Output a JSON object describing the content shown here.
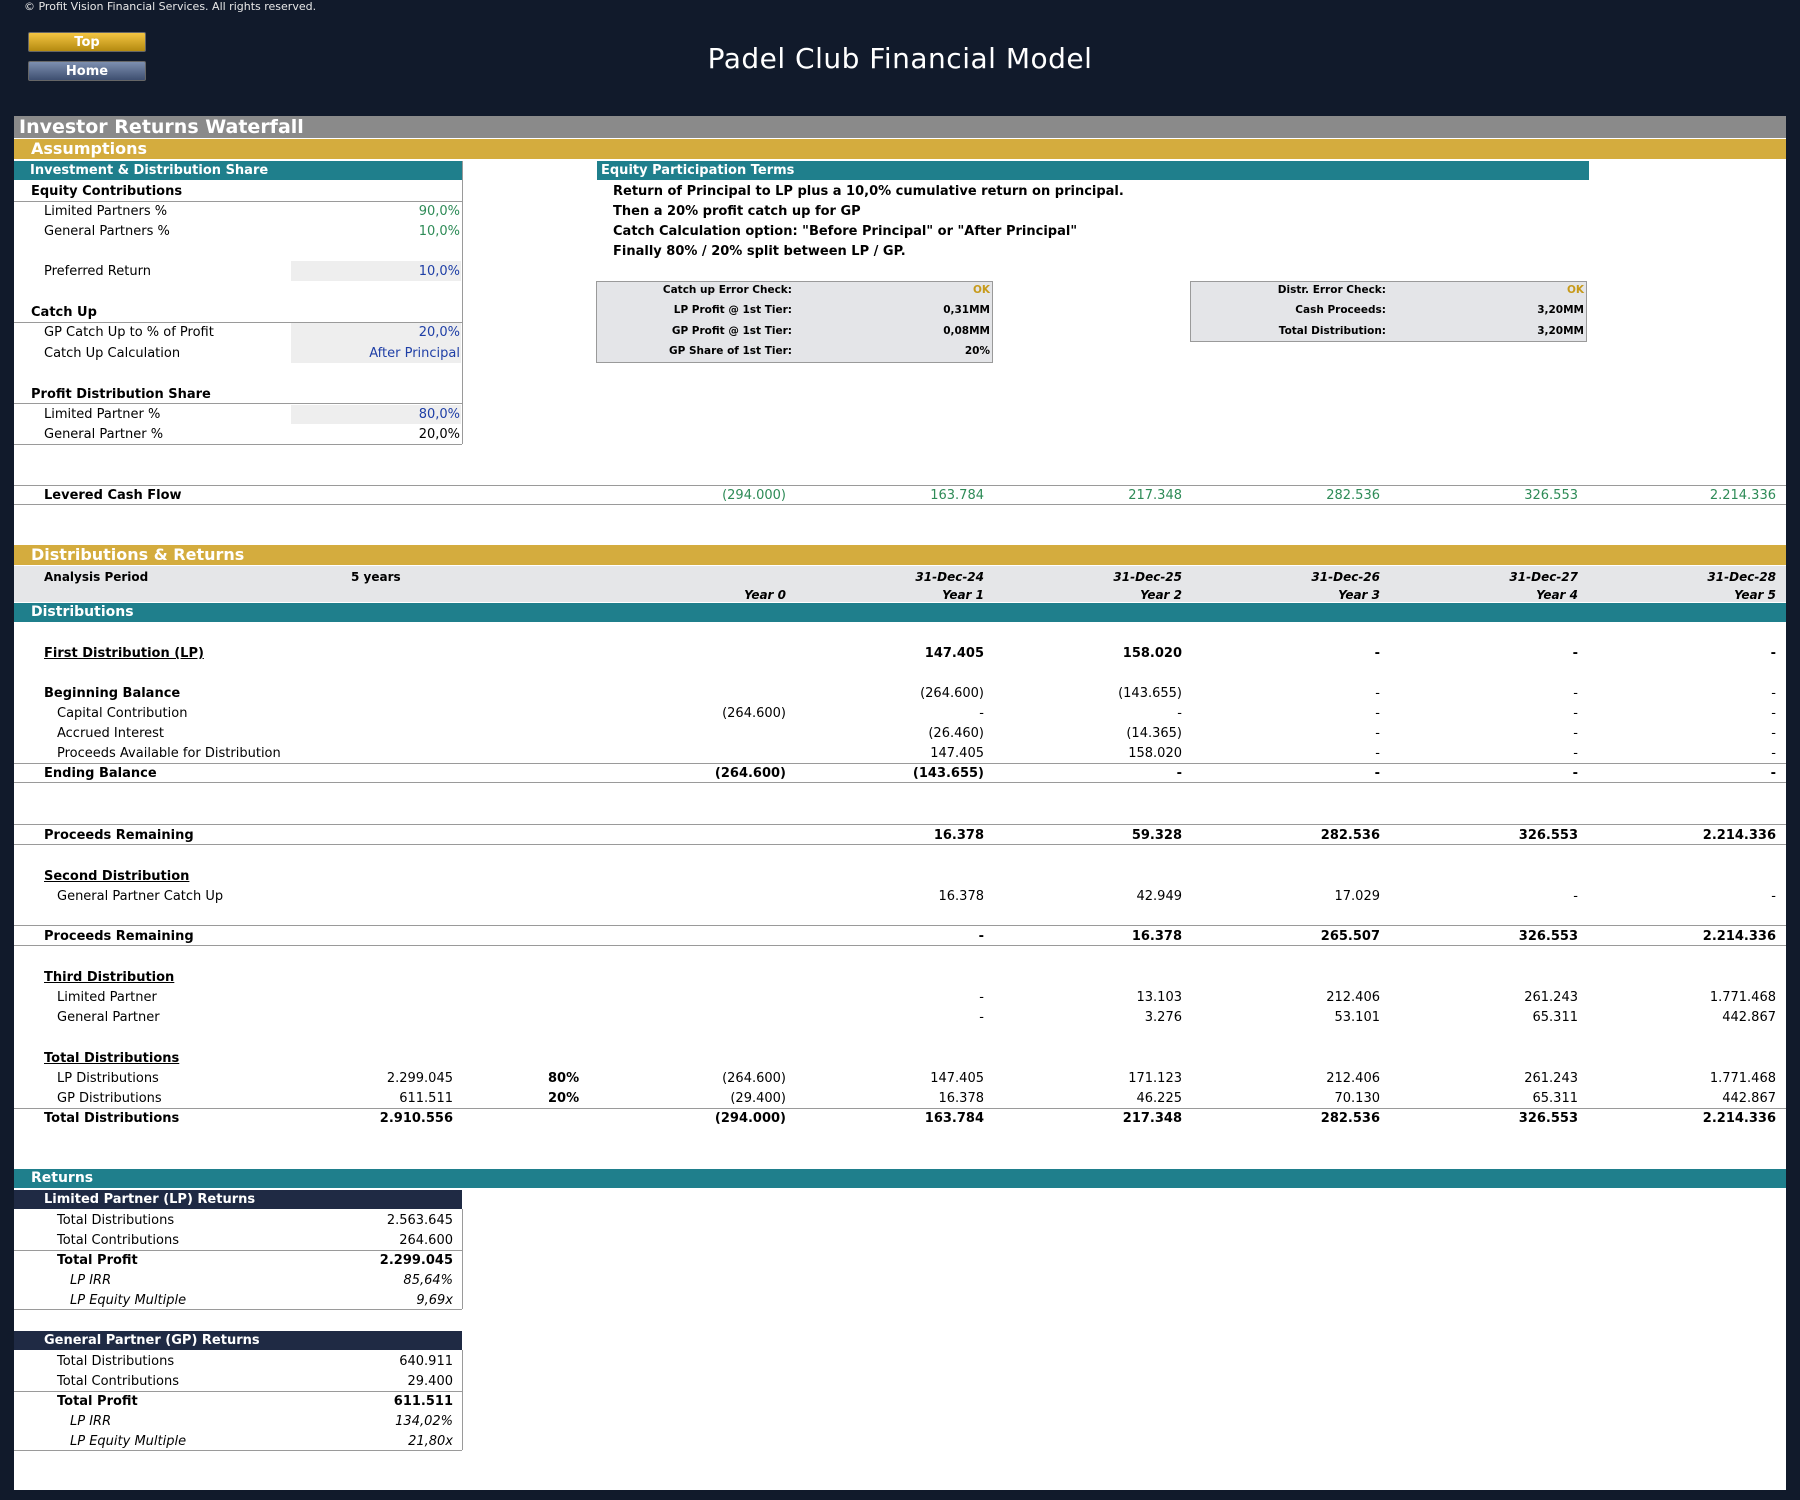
{
  "header": {
    "copyright": "© Profit Vision Financial Services. All rights reserved.",
    "title": "Padel Club Financial Model",
    "top_button": "Top",
    "home_button": "Home"
  },
  "sections": {
    "main": "Investor Returns Waterfall",
    "assumptions": "Assumptions",
    "dist_returns": "Distributions & Returns",
    "distributions": "Distributions",
    "returns": "Returns"
  },
  "assumptions": {
    "panel_title": "Investment & Distribution Share",
    "equity_contributions": "Equity Contributions",
    "lp_pct_label": "Limited Partners %",
    "lp_pct": "90,0%",
    "gp_pct_label": "General Partners %",
    "gp_pct": "10,0%",
    "pref_label": "Preferred Return",
    "pref": "10,0%",
    "catch_up": "Catch Up",
    "gp_catch_label": "GP Catch Up to % of Profit",
    "gp_catch": "20,0%",
    "catch_calc_label": "Catch Up Calculation",
    "catch_calc": "After Principal",
    "profit_share": "Profit Distribution Share",
    "lp_share_label": "Limited Partner %",
    "lp_share": "80,0%",
    "gp_share_label": "General Partner %",
    "gp_share": "20,0%"
  },
  "terms": {
    "title": "Equity Participation Terms",
    "lines": [
      "Return of Principal to LP plus a 10,0% cumulative return on principal.",
      "Then a 20% profit catch up for GP",
      "Catch Calculation option: \"Before Principal\" or \"After Principal\"",
      "Finally 80% / 20% split between LP / GP."
    ]
  },
  "checks1": [
    {
      "label": "Catch up Error Check:",
      "value": "OK"
    },
    {
      "label": "LP Profit @ 1st Tier:",
      "value": "0,31MM"
    },
    {
      "label": "GP Profit @ 1st Tier:",
      "value": "0,08MM"
    },
    {
      "label": "GP Share of 1st Tier:",
      "value": "20%"
    }
  ],
  "checks2": [
    {
      "label": "Distr. Error Check:",
      "value": "OK"
    },
    {
      "label": "Cash Proceeds:",
      "value": "3,20MM"
    },
    {
      "label": "Total Distribution:",
      "value": "3,20MM"
    }
  ],
  "levered": {
    "label": "Levered Cash Flow",
    "values": [
      "(294.000)",
      "163.784",
      "217.348",
      "282.536",
      "326.553",
      "2.214.336"
    ]
  },
  "period": {
    "label": "Analysis Period",
    "value": "5 years",
    "dates": [
      "31-Dec-24",
      "31-Dec-25",
      "31-Dec-26",
      "31-Dec-27",
      "31-Dec-28"
    ],
    "years": [
      "Year 0",
      "Year 1",
      "Year 2",
      "Year 3",
      "Year 4",
      "Year 5"
    ]
  },
  "rows": {
    "first_dist": {
      "label": "First Distribution (LP)",
      "values": [
        "",
        "147.405",
        "158.020",
        "-",
        "-",
        "-"
      ]
    },
    "beg_bal": {
      "label": "Beginning Balance",
      "values": [
        "",
        "(264.600)",
        "(143.655)",
        "-",
        "-",
        "-"
      ]
    },
    "cap_contrib": {
      "label": "Capital Contribution",
      "values": [
        "(264.600)",
        "-",
        "-",
        "-",
        "-",
        "-"
      ]
    },
    "accrued": {
      "label": "Accrued Interest",
      "values": [
        "",
        "(26.460)",
        "(14.365)",
        "-",
        "-",
        "-"
      ]
    },
    "proceeds_avail": {
      "label": "Proceeds Available for Distribution",
      "values": [
        "",
        "147.405",
        "158.020",
        "-",
        "-",
        "-"
      ]
    },
    "end_bal": {
      "label": "Ending Balance",
      "values": [
        "(264.600)",
        "(143.655)",
        "-",
        "-",
        "-",
        "-"
      ]
    },
    "proceeds_rem1": {
      "label": "Proceeds Remaining",
      "values": [
        "",
        "16.378",
        "59.328",
        "282.536",
        "326.553",
        "2.214.336"
      ]
    },
    "second_dist": {
      "label": "Second Distribution"
    },
    "gp_catch": {
      "label": "General Partner Catch Up",
      "values": [
        "",
        "16.378",
        "42.949",
        "17.029",
        "-",
        "-"
      ]
    },
    "proceeds_rem2": {
      "label": "Proceeds Remaining",
      "values": [
        "",
        "-",
        "16.378",
        "265.507",
        "326.553",
        "2.214.336"
      ]
    },
    "third_dist": {
      "label": "Third Distribution"
    },
    "lp_third": {
      "label": "Limited Partner",
      "values": [
        "",
        "-",
        "13.103",
        "212.406",
        "261.243",
        "1.771.468"
      ]
    },
    "gp_third": {
      "label": "General Partner",
      "values": [
        "",
        "-",
        "3.276",
        "53.101",
        "65.311",
        "442.867"
      ]
    },
    "total_dist_head": {
      "label": "Total Distributions"
    },
    "lp_dist": {
      "label": "LP Distributions",
      "total": "2.299.045",
      "pct": "80%",
      "values": [
        "(264.600)",
        "147.405",
        "171.123",
        "212.406",
        "261.243",
        "1.771.468"
      ]
    },
    "gp_dist": {
      "label": "GP Distributions",
      "total": "611.511",
      "pct": "20%",
      "values": [
        "(29.400)",
        "16.378",
        "46.225",
        "70.130",
        "65.311",
        "442.867"
      ]
    },
    "total_dist": {
      "label": "Total Distributions",
      "total": "2.910.556",
      "values": [
        "(294.000)",
        "163.784",
        "217.348",
        "282.536",
        "326.553",
        "2.214.336"
      ]
    }
  },
  "lp_returns": {
    "title": "Limited Partner (LP) Returns",
    "rows": [
      {
        "label": "Total Distributions",
        "value": "2.563.645"
      },
      {
        "label": "Total Contributions",
        "value": "264.600"
      },
      {
        "label": "Total Profit",
        "value": "2.299.045"
      },
      {
        "label": "LP IRR",
        "value": "85,64%"
      },
      {
        "label": "LP Equity Multiple",
        "value": "9,69x"
      }
    ]
  },
  "gp_returns": {
    "title": "General Partner (GP) Returns",
    "rows": [
      {
        "label": "Total Distributions",
        "value": "640.911"
      },
      {
        "label": "Total Contributions",
        "value": "29.400"
      },
      {
        "label": "Total Profit",
        "value": "611.511"
      },
      {
        "label": "LP IRR",
        "value": "134,02%"
      },
      {
        "label": "LP Equity Multiple",
        "value": "21,80x"
      }
    ]
  },
  "colors": {
    "teal": "#1f7f8c",
    "gold": "#d4ac3e",
    "navy": "#1f2a44",
    "green": "#2e8b57"
  }
}
